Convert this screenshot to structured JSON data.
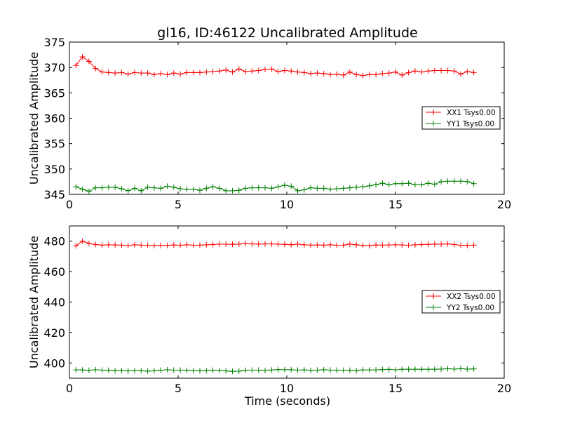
{
  "figure": {
    "title": "gl16, ID:46122 Uncalibrated Amplitude",
    "xlabel": "Time (seconds)"
  },
  "chart_data": [
    {
      "type": "line",
      "title": "gl16, ID:46122 Uncalibrated Amplitude",
      "xlabel": "",
      "ylabel": "Uncalibrated Amplitude",
      "xlim": [
        0,
        20
      ],
      "ylim": [
        345,
        375
      ],
      "xticks": [
        0,
        5,
        10,
        15,
        20
      ],
      "yticks": [
        345,
        350,
        355,
        360,
        365,
        370,
        375
      ],
      "grid": false,
      "legend_position": "center-right",
      "series": [
        {
          "name": "XX1 Tsys0.00",
          "color": "#ff0000",
          "marker": "plus",
          "x": [
            0.3,
            0.6,
            0.9,
            1.2,
            1.5,
            1.8,
            2.1,
            2.4,
            2.7,
            3.0,
            3.3,
            3.6,
            3.9,
            4.2,
            4.5,
            4.8,
            5.1,
            5.4,
            5.7,
            6.0,
            6.3,
            6.6,
            6.9,
            7.2,
            7.5,
            7.8,
            8.1,
            8.4,
            8.7,
            9.0,
            9.3,
            9.6,
            9.9,
            10.2,
            10.5,
            10.8,
            11.1,
            11.4,
            11.7,
            12.0,
            12.3,
            12.6,
            12.9,
            13.2,
            13.5,
            13.8,
            14.1,
            14.4,
            14.7,
            15.0,
            15.3,
            15.6,
            15.9,
            16.2,
            16.5,
            16.8,
            17.1,
            17.4,
            17.7,
            18.0,
            18.3,
            18.6
          ],
          "y": [
            370.4,
            372.1,
            371.2,
            369.8,
            369.1,
            369.0,
            368.9,
            369.0,
            368.7,
            369.0,
            368.9,
            368.9,
            368.6,
            368.8,
            368.6,
            368.9,
            368.7,
            369.0,
            369.0,
            369.0,
            369.1,
            369.2,
            369.3,
            369.5,
            369.1,
            369.7,
            369.2,
            369.3,
            369.4,
            369.6,
            369.7,
            369.2,
            369.4,
            369.3,
            369.1,
            369.0,
            368.8,
            368.9,
            368.8,
            368.6,
            368.7,
            368.5,
            369.1,
            368.6,
            368.4,
            368.6,
            368.6,
            368.8,
            368.9,
            369.1,
            368.5,
            369.0,
            369.3,
            369.1,
            369.3,
            369.4,
            369.4,
            369.4,
            369.3,
            368.7,
            369.2,
            369.0
          ]
        },
        {
          "name": "YY1 Tsys0.00",
          "color": "#008000",
          "marker": "plus",
          "x": [
            0.3,
            0.6,
            0.9,
            1.2,
            1.5,
            1.8,
            2.1,
            2.4,
            2.7,
            3.0,
            3.3,
            3.6,
            3.9,
            4.2,
            4.5,
            4.8,
            5.1,
            5.4,
            5.7,
            6.0,
            6.3,
            6.6,
            6.9,
            7.2,
            7.5,
            7.8,
            8.1,
            8.4,
            8.7,
            9.0,
            9.3,
            9.6,
            9.9,
            10.2,
            10.5,
            10.8,
            11.1,
            11.4,
            11.7,
            12.0,
            12.3,
            12.6,
            12.9,
            13.2,
            13.5,
            13.8,
            14.1,
            14.4,
            14.7,
            15.0,
            15.3,
            15.6,
            15.9,
            16.2,
            16.5,
            16.8,
            17.1,
            17.4,
            17.7,
            18.0,
            18.3,
            18.6
          ],
          "y": [
            346.5,
            346.0,
            345.6,
            346.3,
            346.3,
            346.4,
            346.4,
            346.1,
            345.7,
            346.2,
            345.7,
            346.4,
            346.3,
            346.2,
            346.6,
            346.4,
            346.1,
            346.0,
            346.0,
            345.8,
            346.2,
            346.5,
            346.2,
            345.7,
            345.7,
            345.8,
            346.2,
            346.3,
            346.3,
            346.3,
            346.2,
            346.5,
            346.8,
            346.6,
            345.7,
            345.9,
            346.3,
            346.2,
            346.2,
            346.0,
            346.1,
            346.2,
            346.3,
            346.4,
            346.5,
            346.7,
            346.9,
            347.2,
            346.9,
            347.1,
            347.1,
            347.2,
            346.9,
            346.9,
            347.2,
            347.0,
            347.5,
            347.6,
            347.6,
            347.6,
            347.5,
            347.1
          ]
        }
      ]
    },
    {
      "type": "line",
      "title": "",
      "xlabel": "Time (seconds)",
      "ylabel": "Uncalibrated Amplitude",
      "xlim": [
        0,
        20
      ],
      "ylim": [
        390,
        490
      ],
      "xticks": [
        0,
        5,
        10,
        15,
        20
      ],
      "yticks": [
        400,
        420,
        440,
        460,
        480
      ],
      "grid": false,
      "legend_position": "center-right",
      "series": [
        {
          "name": "XX2 Tsys0.00",
          "color": "#ff0000",
          "marker": "plus",
          "x": [
            0.3,
            0.6,
            0.9,
            1.2,
            1.5,
            1.8,
            2.1,
            2.4,
            2.7,
            3.0,
            3.3,
            3.6,
            3.9,
            4.2,
            4.5,
            4.8,
            5.1,
            5.4,
            5.7,
            6.0,
            6.3,
            6.6,
            6.9,
            7.2,
            7.5,
            7.8,
            8.1,
            8.4,
            8.7,
            9.0,
            9.3,
            9.6,
            9.9,
            10.2,
            10.5,
            10.8,
            11.1,
            11.4,
            11.7,
            12.0,
            12.3,
            12.6,
            12.9,
            13.2,
            13.5,
            13.8,
            14.1,
            14.4,
            14.7,
            15.0,
            15.3,
            15.6,
            15.9,
            16.2,
            16.5,
            16.8,
            17.1,
            17.4,
            17.7,
            18.0,
            18.3,
            18.6
          ],
          "y": [
            477.0,
            480.0,
            478.5,
            477.8,
            477.4,
            477.6,
            477.5,
            477.4,
            477.1,
            477.6,
            477.4,
            477.3,
            477.1,
            477.3,
            477.2,
            477.5,
            477.3,
            477.6,
            477.3,
            477.4,
            477.6,
            477.8,
            478.0,
            478.0,
            477.9,
            478.1,
            478.4,
            478.2,
            478.1,
            478.2,
            478.2,
            478.0,
            477.9,
            477.7,
            478.1,
            477.6,
            477.4,
            477.5,
            477.4,
            477.6,
            477.3,
            477.4,
            478.1,
            477.6,
            477.2,
            477.0,
            477.5,
            477.4,
            477.5,
            477.6,
            477.5,
            477.3,
            477.6,
            477.8,
            477.9,
            478.1,
            478.0,
            478.2,
            477.8,
            477.3,
            477.2,
            477.4
          ]
        },
        {
          "name": "YY2 Tsys0.00",
          "color": "#008000",
          "marker": "plus",
          "x": [
            0.3,
            0.6,
            0.9,
            1.2,
            1.5,
            1.8,
            2.1,
            2.4,
            2.7,
            3.0,
            3.3,
            3.6,
            3.9,
            4.2,
            4.5,
            4.8,
            5.1,
            5.4,
            5.7,
            6.0,
            6.3,
            6.6,
            6.9,
            7.2,
            7.5,
            7.8,
            8.1,
            8.4,
            8.7,
            9.0,
            9.3,
            9.6,
            9.9,
            10.2,
            10.5,
            10.8,
            11.1,
            11.4,
            11.7,
            12.0,
            12.3,
            12.6,
            12.9,
            13.2,
            13.5,
            13.8,
            14.1,
            14.4,
            14.7,
            15.0,
            15.3,
            15.6,
            15.9,
            16.2,
            16.5,
            16.8,
            17.1,
            17.4,
            17.7,
            18.0,
            18.3,
            18.6
          ],
          "y": [
            395.5,
            395.4,
            395.2,
            395.6,
            395.3,
            395.2,
            394.9,
            394.9,
            394.8,
            394.9,
            394.9,
            394.6,
            394.9,
            395.2,
            395.6,
            395.3,
            395.3,
            395.2,
            394.9,
            394.9,
            394.9,
            395.2,
            395.1,
            394.8,
            394.5,
            394.6,
            395.2,
            395.3,
            395.3,
            395.0,
            395.4,
            395.7,
            395.6,
            395.6,
            395.3,
            395.5,
            395.1,
            395.3,
            395.6,
            395.3,
            395.2,
            395.3,
            395.2,
            394.9,
            395.4,
            395.4,
            395.5,
            395.7,
            395.8,
            395.5,
            395.9,
            395.9,
            395.9,
            395.9,
            395.9,
            395.9,
            396.0,
            396.2,
            396.0,
            396.3,
            396.0,
            396.1
          ]
        }
      ]
    }
  ]
}
